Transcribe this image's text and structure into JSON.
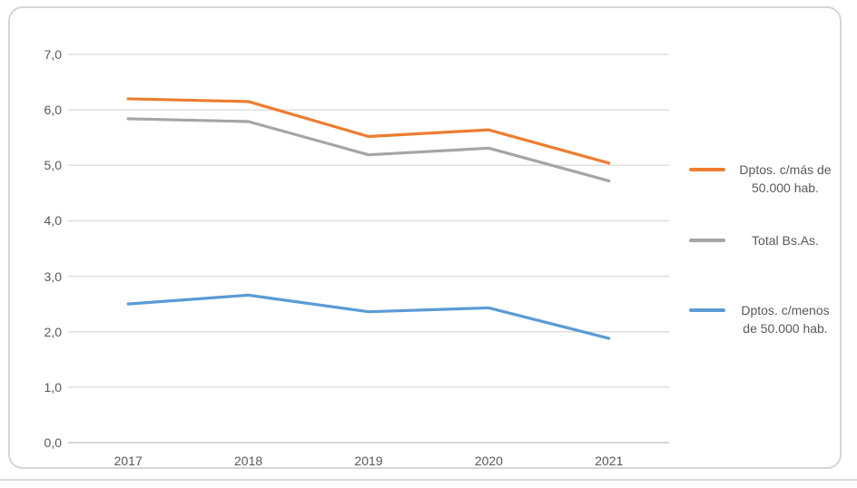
{
  "chart_data": {
    "type": "line",
    "title": "",
    "xlabel": "",
    "ylabel": "",
    "x": [
      "2017",
      "2018",
      "2019",
      "2020",
      "2021"
    ],
    "series": [
      {
        "name": "Dptos. c/más de 50.000 hab.",
        "legend_lines": [
          "Dptos. c/más de",
          "50.000 hab."
        ],
        "color": "#ED7D31",
        "values": [
          6.2,
          6.15,
          5.52,
          5.64,
          5.04
        ]
      },
      {
        "name": "Total Bs.As.",
        "legend_lines": [
          "Total Bs.As."
        ],
        "color": "#A5A5A5",
        "values": [
          5.84,
          5.79,
          5.19,
          5.31,
          4.72
        ]
      },
      {
        "name": "Dptos. c/menos de 50.000 hab.",
        "legend_lines": [
          "Dptos. c/menos",
          "de 50.000 hab."
        ],
        "color": "#5B9BD5",
        "values": [
          2.5,
          2.66,
          2.36,
          2.43,
          1.88
        ]
      }
    ],
    "ylim": [
      0,
      7
    ],
    "ytick_step": 1,
    "ytick_labels": [
      "0,0",
      "1,0",
      "2,0",
      "3,0",
      "4,0",
      "5,0",
      "6,0",
      "7,0"
    ],
    "decimal_separator": ",",
    "grid": true,
    "legend_position": "right"
  },
  "styles": {
    "background": "#FFFFFF",
    "grid_color": "#D9D9D9",
    "axis_line_color": "#BFBFBF",
    "tick_label_color": "#595959",
    "legend_text_color": "#595959",
    "border_color": "#D6D6D6"
  }
}
